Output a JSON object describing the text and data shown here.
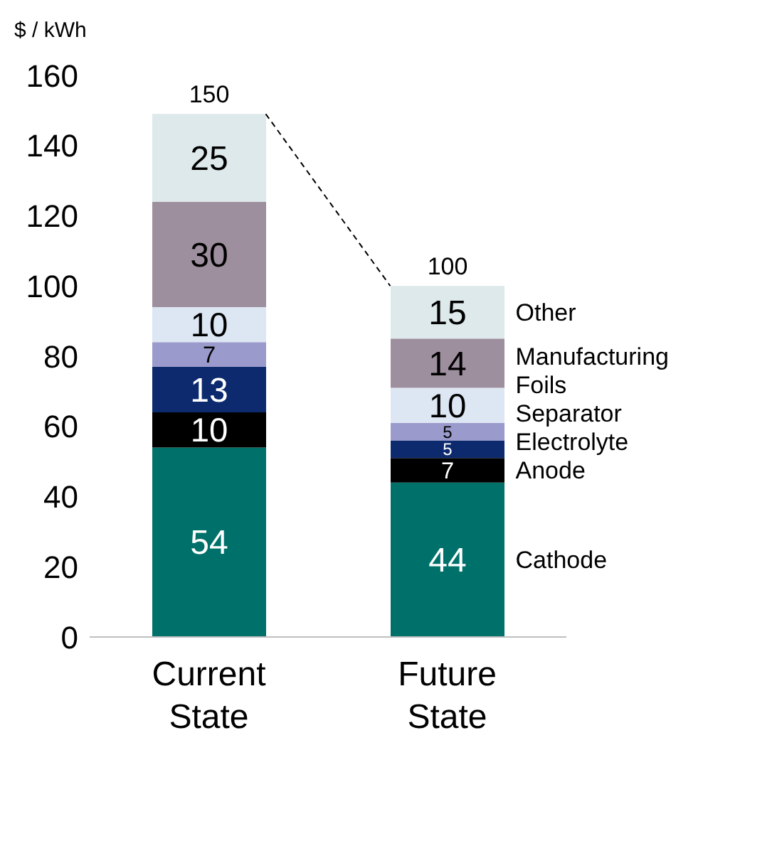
{
  "chart_data": {
    "type": "bar",
    "stacked": true,
    "ylabel": "$ / kWh",
    "categories": [
      "Current State",
      "Future State"
    ],
    "series": [
      {
        "name": "Cathode",
        "color": "#00716a",
        "values": [
          54,
          44
        ]
      },
      {
        "name": "Anode",
        "color": "#000000",
        "values": [
          10,
          7
        ]
      },
      {
        "name": "Electrolyte",
        "color": "#0d2a6e",
        "values": [
          13,
          5
        ]
      },
      {
        "name": "Separator",
        "color": "#9a9acc",
        "values": [
          7,
          5
        ]
      },
      {
        "name": "Foils",
        "color": "#dde6f3",
        "values": [
          10,
          10
        ]
      },
      {
        "name": "Manufacturing",
        "color": "#9e8f9e",
        "values": [
          30,
          14
        ]
      },
      {
        "name": "Other",
        "color": "#dde9ea",
        "values": [
          25,
          15
        ]
      }
    ],
    "totals": [
      "150",
      "100"
    ],
    "data_labels": true,
    "ylim": [
      0,
      160
    ],
    "yticks": [
      0,
      20,
      40,
      60,
      80,
      100,
      120,
      140,
      160
    ]
  }
}
